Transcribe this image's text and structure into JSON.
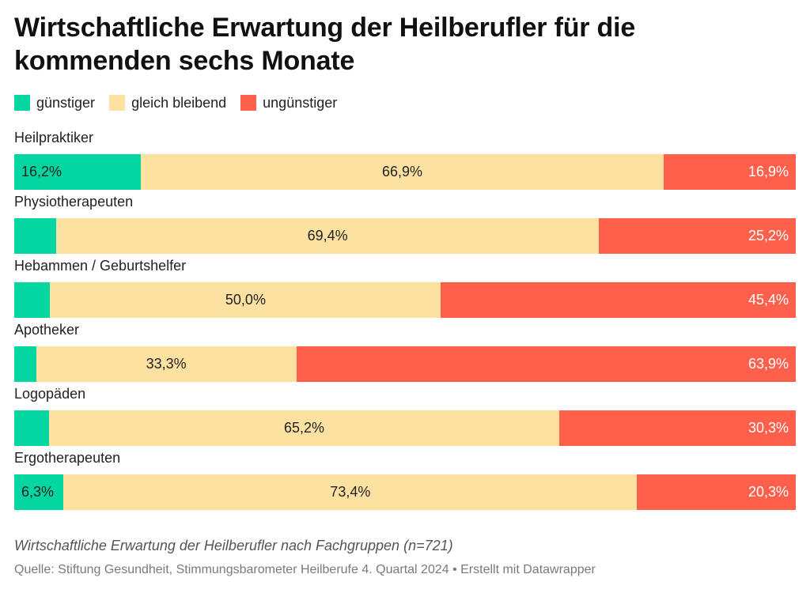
{
  "colors": {
    "guenstiger": "#04d6a2",
    "gleich": "#fde1a1",
    "unguenstiger": "#ff604c"
  },
  "chart_data": {
    "type": "bar",
    "stacked": true,
    "orientation": "horizontal",
    "title": "Wirtschaftliche Erwartung der Heilberufler für die kommenden sechs Monate",
    "legend": [
      {
        "key": "guenstiger",
        "label": "günstiger"
      },
      {
        "key": "gleich",
        "label": "gleich bleibend"
      },
      {
        "key": "unguenstiger",
        "label": "ungünstiger"
      }
    ],
    "legend_position": "top-left",
    "ylim": [
      0,
      100
    ],
    "categories": [
      "Heilpraktiker",
      "Physiotherapeuten",
      "Hebammen / Geburtshelfer",
      "Apotheker",
      "Logopäden",
      "Ergotherapeuten"
    ],
    "series": [
      {
        "key": "guenstiger",
        "name": "günstiger",
        "values": [
          16.2,
          5.4,
          4.6,
          2.8,
          4.5,
          6.3
        ],
        "labels": [
          "16,2%",
          "",
          "",
          "",
          "",
          "6,3%"
        ]
      },
      {
        "key": "gleich",
        "name": "gleich bleibend",
        "values": [
          66.9,
          69.4,
          50.0,
          33.3,
          65.2,
          73.4
        ],
        "labels": [
          "66,9%",
          "69,4%",
          "50,0%",
          "33,3%",
          "65,2%",
          "73,4%"
        ]
      },
      {
        "key": "unguenstiger",
        "name": "ungünstiger",
        "values": [
          16.9,
          25.2,
          45.4,
          63.9,
          30.3,
          20.3
        ],
        "labels": [
          "16,9%",
          "25,2%",
          "45,4%",
          "63,9%",
          "30,3%",
          "20,3%"
        ]
      }
    ]
  },
  "caption": "Wirtschaftliche Erwartung der Heilberufler nach Fachgruppen (n=721)",
  "source": "Quelle: Stiftung Gesundheit, Stimmungsbarometer Heilberufe 4. Quartal 2024 • Erstellt mit Datawrapper"
}
